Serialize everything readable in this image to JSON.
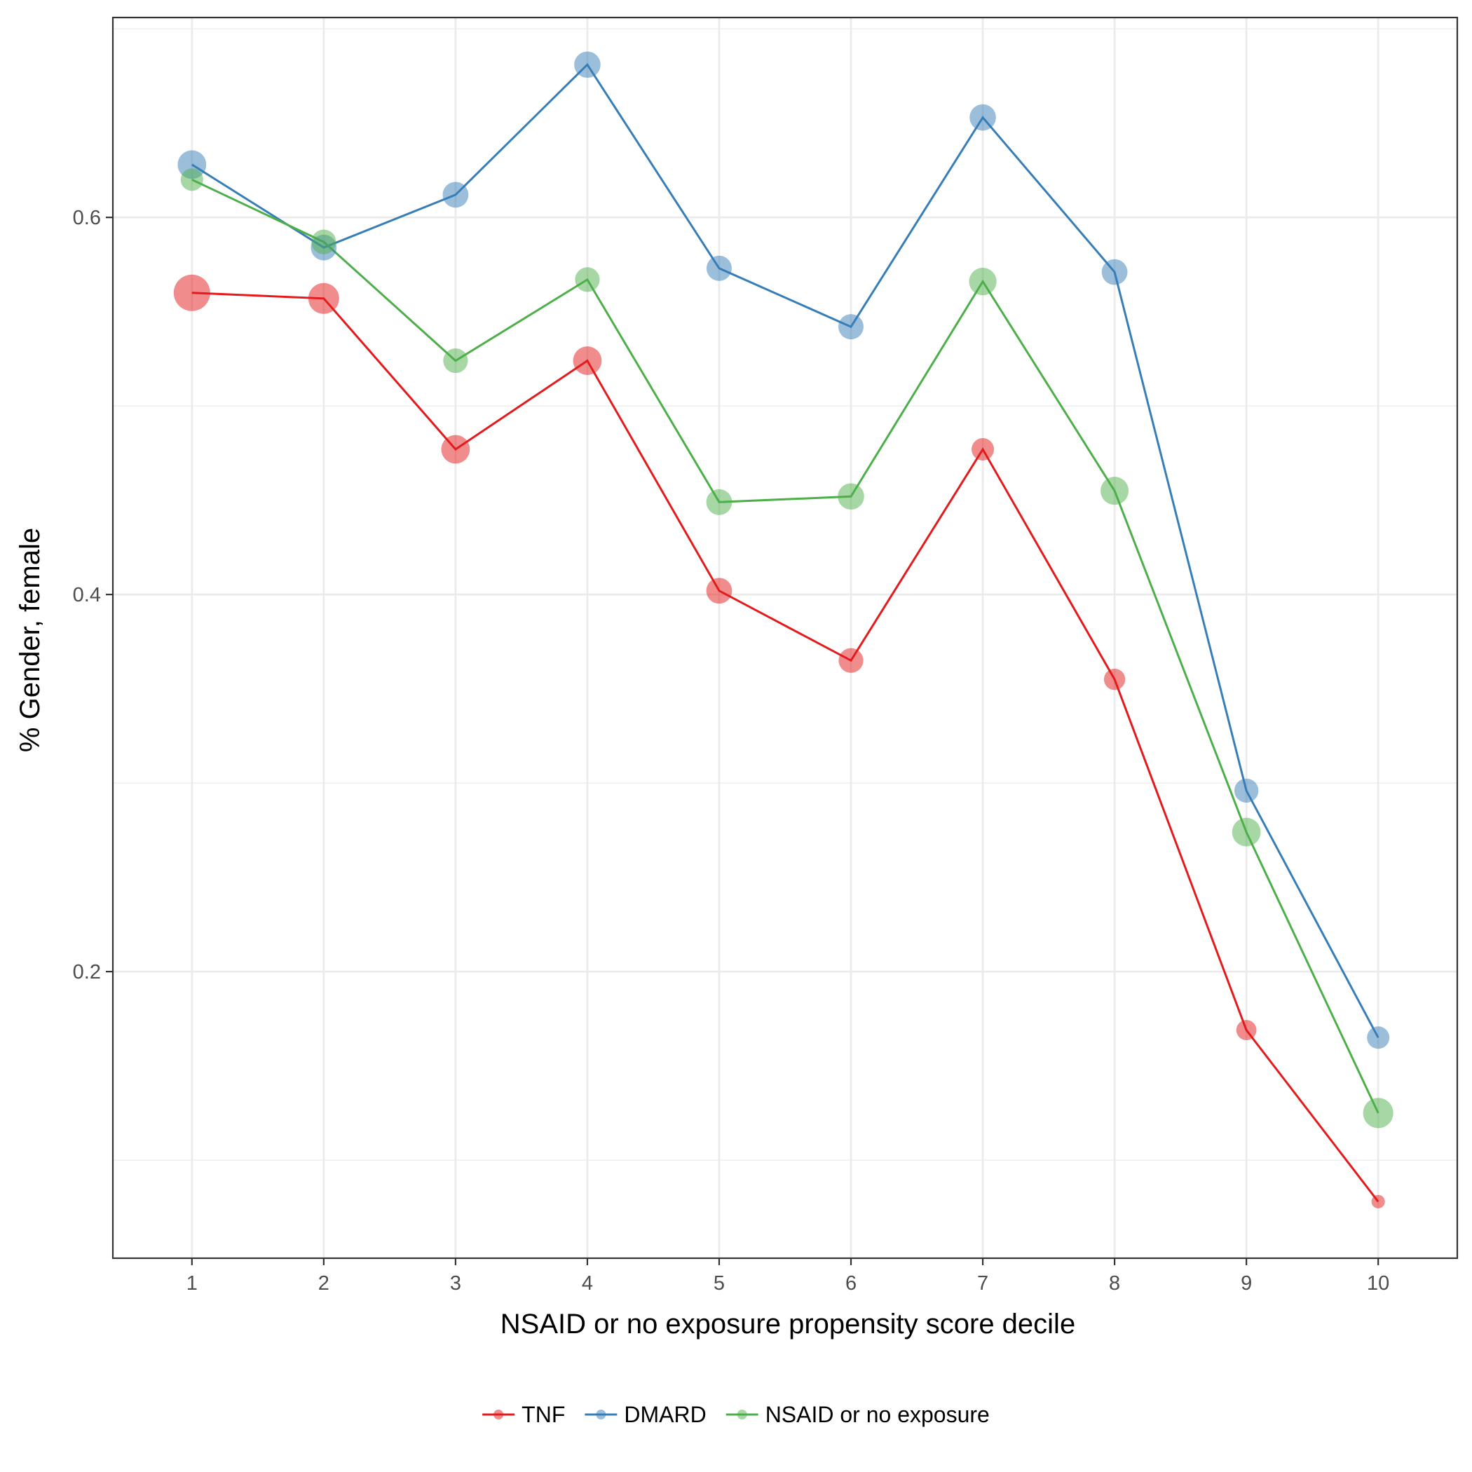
{
  "chart_data": {
    "type": "line",
    "xlabel": "NSAID or no exposure propensity score decile",
    "ylabel": "% Gender, female",
    "x": [
      1,
      2,
      3,
      4,
      5,
      6,
      7,
      8,
      9,
      10
    ],
    "xticks": [
      "1",
      "2",
      "3",
      "4",
      "5",
      "6",
      "7",
      "8",
      "9",
      "10"
    ],
    "yticks": [
      0.2,
      0.4,
      0.6
    ],
    "ytick_labels": [
      "0.2",
      "0.4",
      "0.6"
    ],
    "xlim": [
      0.4,
      10.6
    ],
    "ylim": [
      0.048,
      0.706
    ],
    "grid": true,
    "legend_position": "bottom",
    "series": [
      {
        "name": "TNF",
        "color": "#e41a1c",
        "values": [
          0.56,
          0.557,
          0.477,
          0.524,
          0.402,
          0.365,
          0.477,
          0.355,
          0.169,
          0.078
        ],
        "point_sizes": [
          1.0,
          0.8,
          0.72,
          0.72,
          0.62,
          0.58,
          0.5,
          0.46,
          0.42,
          0.18
        ]
      },
      {
        "name": "DMARD",
        "color": "#377eb8",
        "values": [
          0.628,
          0.584,
          0.612,
          0.681,
          0.573,
          0.542,
          0.653,
          0.571,
          0.296,
          0.165
        ],
        "point_sizes": [
          0.72,
          0.62,
          0.62,
          0.64,
          0.6,
          0.6,
          0.64,
          0.62,
          0.56,
          0.5
        ]
      },
      {
        "name": "NSAID or no exposure",
        "color": "#4daf4a",
        "values": [
          0.62,
          0.587,
          0.524,
          0.567,
          0.449,
          0.452,
          0.566,
          0.455,
          0.274,
          0.125
        ],
        "point_sizes": [
          0.5,
          0.58,
          0.58,
          0.58,
          0.62,
          0.64,
          0.68,
          0.7,
          0.72,
          0.78
        ]
      }
    ]
  }
}
